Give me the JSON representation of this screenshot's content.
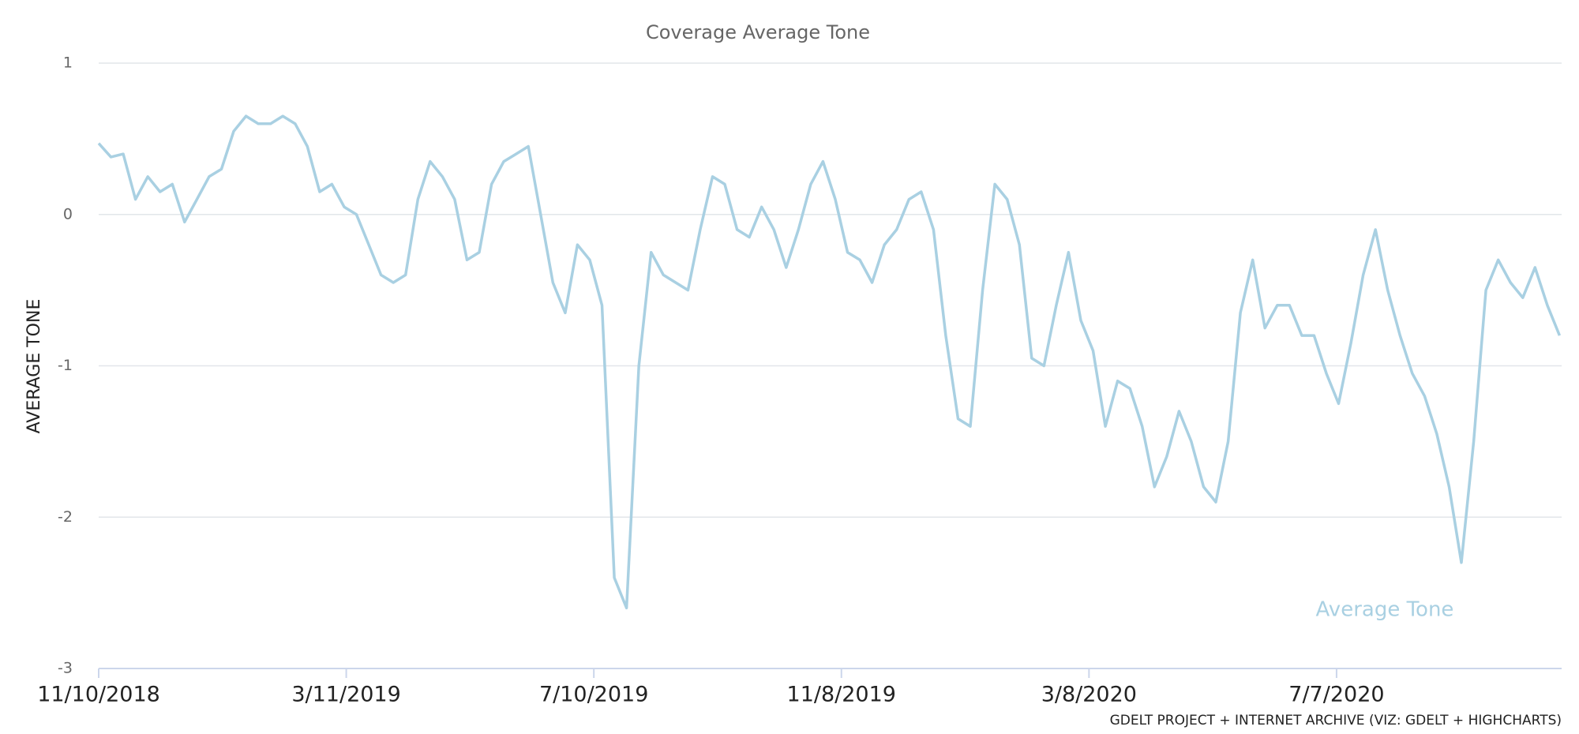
{
  "chart_data": {
    "type": "line",
    "title": "Coverage Average Tone",
    "ylabel": "AVERAGE TONE",
    "credit": "GDELT PROJECT + INTERNET ARCHIVE (VIZ: GDELT + HIGHCHARTS)",
    "xlim": [
      "2018-11-10",
      "2020-10-25"
    ],
    "xticks": [
      {
        "value": "2018-11-10",
        "label": "11/10/2018"
      },
      {
        "value": "2019-03-11",
        "label": "3/11/2019"
      },
      {
        "value": "2019-07-10",
        "label": "7/10/2019"
      },
      {
        "value": "2019-11-08",
        "label": "11/8/2019"
      },
      {
        "value": "2020-03-08",
        "label": "3/8/2020"
      },
      {
        "value": "2020-07-07",
        "label": "7/7/2020"
      }
    ],
    "ylim": [
      -3,
      1
    ],
    "yticks": [
      -3,
      -2,
      -1,
      0,
      1
    ],
    "grid": true,
    "x": [
      "2018-11-10",
      "2018-11-16",
      "2018-11-22",
      "2018-11-28",
      "2018-12-04",
      "2018-12-10",
      "2018-12-16",
      "2018-12-22",
      "2018-12-28",
      "2019-01-03",
      "2019-01-09",
      "2019-01-15",
      "2019-01-21",
      "2019-01-27",
      "2019-02-02",
      "2019-02-08",
      "2019-02-14",
      "2019-02-20",
      "2019-02-26",
      "2019-03-04",
      "2019-03-10",
      "2019-03-16",
      "2019-03-22",
      "2019-03-28",
      "2019-04-03",
      "2019-04-09",
      "2019-04-15",
      "2019-04-21",
      "2019-04-27",
      "2019-05-03",
      "2019-05-09",
      "2019-05-15",
      "2019-05-21",
      "2019-05-27",
      "2019-06-02",
      "2019-06-08",
      "2019-06-14",
      "2019-06-20",
      "2019-06-26",
      "2019-07-02",
      "2019-07-08",
      "2019-07-14",
      "2019-07-20",
      "2019-07-26",
      "2019-08-01",
      "2019-08-07",
      "2019-08-13",
      "2019-08-19",
      "2019-08-25",
      "2019-08-31",
      "2019-09-06",
      "2019-09-12",
      "2019-09-18",
      "2019-09-24",
      "2019-09-30",
      "2019-10-06",
      "2019-10-12",
      "2019-10-18",
      "2019-10-24",
      "2019-10-30",
      "2019-11-05",
      "2019-11-11",
      "2019-11-17",
      "2019-11-23",
      "2019-11-29",
      "2019-12-05",
      "2019-12-11",
      "2019-12-17",
      "2019-12-23",
      "2019-12-29",
      "2020-01-04",
      "2020-01-10",
      "2020-01-16",
      "2020-01-22",
      "2020-01-28",
      "2020-02-03",
      "2020-02-09",
      "2020-02-15",
      "2020-02-21",
      "2020-02-27",
      "2020-03-04",
      "2020-03-10",
      "2020-03-16",
      "2020-03-22",
      "2020-03-28",
      "2020-04-03",
      "2020-04-09",
      "2020-04-15",
      "2020-04-21",
      "2020-04-27",
      "2020-05-03",
      "2020-05-09",
      "2020-05-15",
      "2020-05-21",
      "2020-05-27",
      "2020-06-02",
      "2020-06-08",
      "2020-06-14",
      "2020-06-20",
      "2020-06-26",
      "2020-07-02",
      "2020-07-08",
      "2020-07-14",
      "2020-07-20",
      "2020-07-26",
      "2020-08-01",
      "2020-08-07",
      "2020-08-13",
      "2020-08-19",
      "2020-08-25",
      "2020-08-31",
      "2020-09-06",
      "2020-09-12",
      "2020-09-18",
      "2020-09-24",
      "2020-09-30",
      "2020-10-06",
      "2020-10-12",
      "2020-10-18",
      "2020-10-24"
    ],
    "series": [
      {
        "name": "Average Tone",
        "color": "#a9d0e2",
        "values": [
          0.47,
          0.38,
          0.4,
          0.1,
          0.25,
          0.15,
          0.2,
          -0.05,
          0.1,
          0.25,
          0.3,
          0.55,
          0.65,
          0.6,
          0.6,
          0.65,
          0.6,
          0.45,
          0.15,
          0.2,
          0.05,
          0.0,
          -0.2,
          -0.4,
          -0.45,
          -0.4,
          0.1,
          0.35,
          0.25,
          0.1,
          -0.3,
          -0.25,
          0.2,
          0.35,
          0.4,
          0.45,
          0.0,
          -0.45,
          -0.65,
          -0.2,
          -0.3,
          -0.6,
          -2.4,
          -2.6,
          -1.0,
          -0.25,
          -0.4,
          -0.45,
          -0.5,
          -0.1,
          0.25,
          0.2,
          -0.1,
          -0.15,
          0.05,
          -0.1,
          -0.35,
          -0.1,
          0.2,
          0.35,
          0.1,
          -0.25,
          -0.3,
          -0.45,
          -0.2,
          -0.1,
          0.1,
          0.15,
          -0.1,
          -0.8,
          -1.35,
          -1.4,
          -0.5,
          0.2,
          0.1,
          -0.2,
          -0.95,
          -1.0,
          -0.6,
          -0.25,
          -0.7,
          -0.9,
          -1.4,
          -1.1,
          -1.15,
          -1.4,
          -1.8,
          -1.6,
          -1.3,
          -1.5,
          -1.8,
          -1.9,
          -1.5,
          -0.65,
          -0.3,
          -0.75,
          -0.6,
          -0.6,
          -0.8,
          -0.8,
          -1.05,
          -1.25,
          -0.85,
          -0.4,
          -0.1,
          -0.5,
          -0.8,
          -1.05,
          -1.2,
          -1.45,
          -1.8,
          -2.3,
          -1.5,
          -0.5,
          -0.3,
          -0.45,
          -0.55,
          -0.35,
          -0.6,
          -0.8
        ]
      }
    ]
  }
}
